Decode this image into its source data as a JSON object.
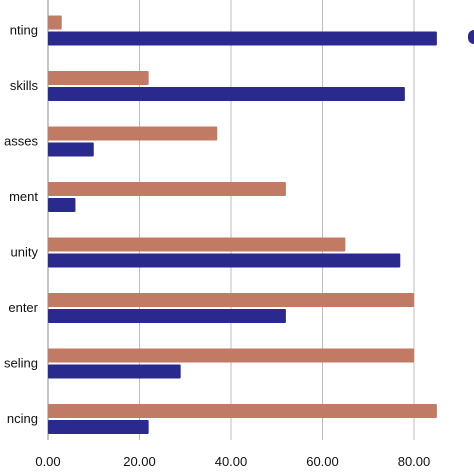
{
  "chart_data": {
    "type": "bar",
    "orientation": "horizontal",
    "categories": [
      "nting",
      "skills",
      "asses",
      "ment",
      "unity",
      "enter",
      "seling",
      "ncing"
    ],
    "series": [
      {
        "values": [
          3,
          22,
          37,
          52,
          65,
          80,
          80,
          85
        ],
        "color": "#c17a63"
      },
      {
        "values": [
          85,
          78,
          10,
          6,
          77,
          52,
          29,
          22
        ],
        "color": "#2a2a8e"
      }
    ],
    "x_ticks": [
      "0.00",
      "20.00",
      "40.00",
      "60.00",
      "80.00"
    ],
    "xlim": [
      0,
      90
    ],
    "grid": true,
    "legend": "top-right, cut off"
  }
}
